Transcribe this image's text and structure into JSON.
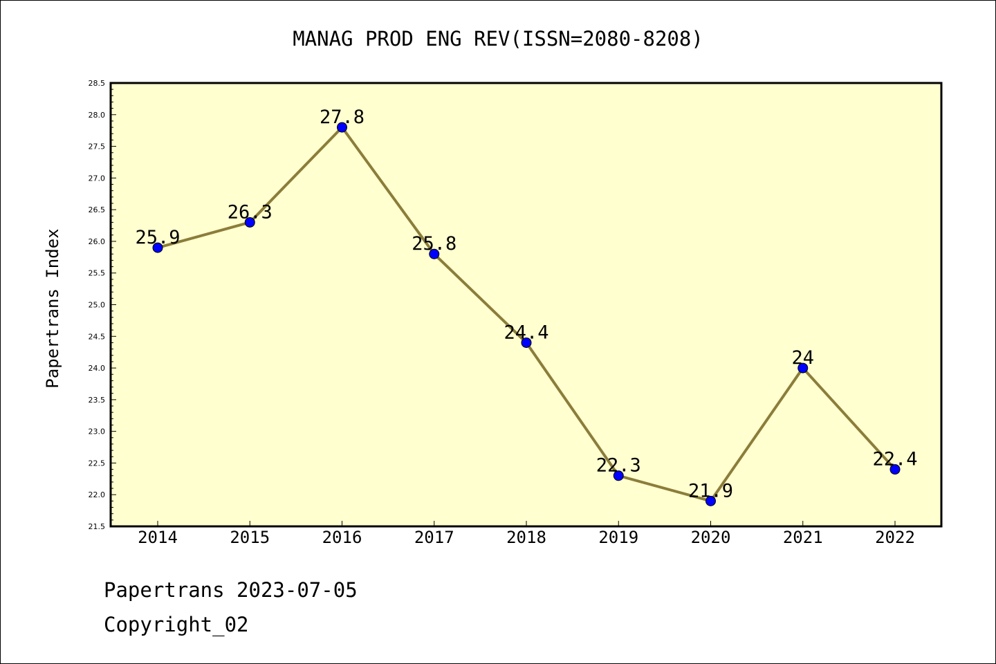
{
  "chart_data": {
    "type": "line",
    "title": "MANAG PROD ENG REV(ISSN=2080-8208)",
    "xlabel": "",
    "ylabel": "Papertrans Index",
    "categories": [
      "2014",
      "2015",
      "2016",
      "2017",
      "2018",
      "2019",
      "2020",
      "2021",
      "2022"
    ],
    "series": [
      {
        "values": [
          25.9,
          26.3,
          27.8,
          25.8,
          24.4,
          22.3,
          21.9,
          24,
          22.4
        ],
        "data_labels": [
          "25.9",
          "26.3",
          "27.8",
          "25.8",
          "24.4",
          "22.3",
          "21.9",
          "24",
          "22.4"
        ]
      }
    ],
    "ylim": [
      21.5,
      28.5
    ],
    "yticks": [
      "21.5",
      "22.0",
      "22.5",
      "23.0",
      "23.5",
      "24.0",
      "24.5",
      "25.0",
      "25.5",
      "26.0",
      "26.5",
      "27.0",
      "27.5",
      "28.0",
      "28.5"
    ],
    "grid": false,
    "legend": "none",
    "colors": {
      "plot_background": "#ffffd0",
      "line": "#8b7d3a",
      "marker": "#0000ff",
      "axis": "#000000"
    }
  },
  "footer": {
    "line1": "Papertrans 2023-07-05",
    "line2": "Copyright_02"
  }
}
